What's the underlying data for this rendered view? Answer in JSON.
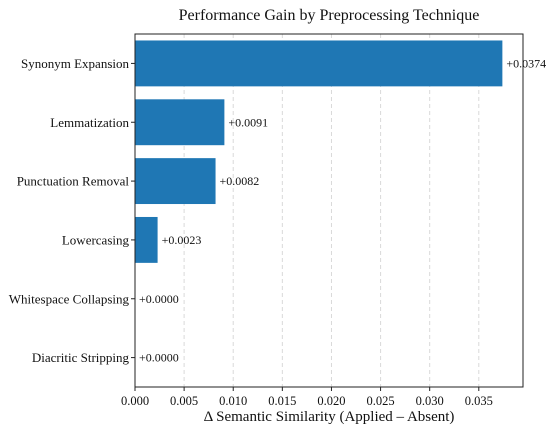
{
  "chart_data": {
    "type": "bar",
    "orientation": "horizontal",
    "title": "Performance Gain by Preprocessing Technique",
    "xlabel": "Δ Semantic Similarity (Applied – Absent)",
    "ylabel": "",
    "categories": [
      "Synonym Expansion",
      "Lemmatization",
      "Punctuation Removal",
      "Lowercasing",
      "Whitespace Collapsing",
      "Diacritic Stripping"
    ],
    "values": [
      0.0374,
      0.0091,
      0.0082,
      0.0023,
      0.0,
      0.0
    ],
    "data_labels": [
      "+0.0374",
      "+0.0091",
      "+0.0082",
      "+0.0023",
      "+0.0000",
      "+0.0000"
    ],
    "xlim": [
      0.0,
      0.0395
    ],
    "xticks": [
      0.0,
      0.005,
      0.01,
      0.015,
      0.02,
      0.025,
      0.03,
      0.035
    ],
    "xtick_labels": [
      "0.000",
      "0.005",
      "0.010",
      "0.015",
      "0.020",
      "0.025",
      "0.030",
      "0.035"
    ],
    "grid": "x-dashed",
    "colors": {
      "bar": "#1f77b4"
    }
  }
}
